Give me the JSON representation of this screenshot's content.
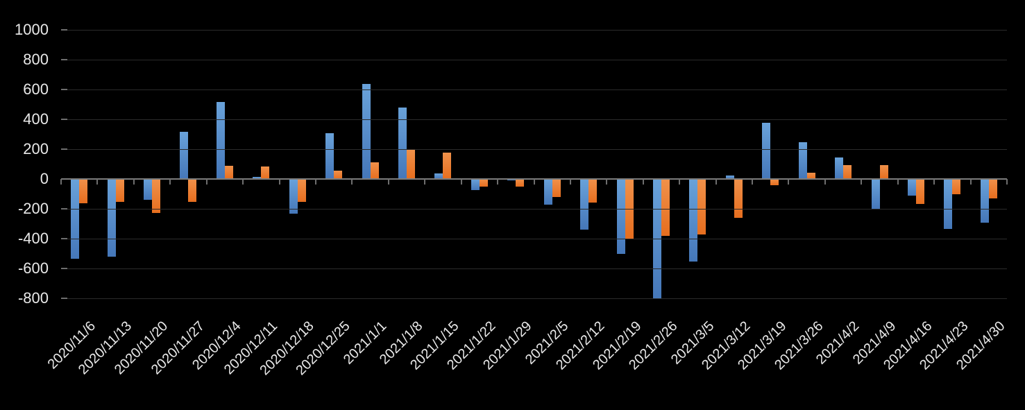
{
  "colors": {
    "background": "#000000",
    "gridline": "#2b2b2b",
    "axis_line": "#7d7d7d",
    "tick": "#6e6e6e",
    "label_text": "#e9e9e9",
    "series_blue": "#5b9bd5",
    "series_blue_gradient_top": "#69a2da",
    "series_blue_gradient_bottom": "#4577b9",
    "series_orange": "#ed7d31",
    "series_orange_gradient_top": "#f0914a",
    "series_orange_gradient_bottom": "#e66e1f"
  },
  "chart_data": {
    "type": "bar",
    "title": "",
    "xlabel": "",
    "ylabel": "",
    "grid": true,
    "legend": "none",
    "ylim": [
      -800,
      1000
    ],
    "ytick_interval": 200,
    "yticks": [
      1000,
      800,
      600,
      400,
      200,
      0,
      -200,
      -400,
      -600,
      -800
    ],
    "categories": [
      "2020/11/6",
      "2020/11/13",
      "2020/11/20",
      "2020/11/27",
      "2020/12/4",
      "2020/12/11",
      "2020/12/18",
      "2020/12/25",
      "2021/1/1",
      "2021/1/8",
      "2021/1/15",
      "2021/1/22",
      "2021/1/29",
      "2021/2/5",
      "2021/2/12",
      "2021/2/19",
      "2021/2/26",
      "2021/3/5",
      "2021/3/12",
      "2021/3/19",
      "2021/3/26",
      "2021/4/2",
      "2021/4/9",
      "2021/4/16",
      "2021/4/23",
      "2021/4/30"
    ],
    "series": [
      {
        "name": "blue",
        "color": "#5b9bd5",
        "values": [
          -535,
          -520,
          -140,
          320,
          520,
          15,
          -230,
          310,
          640,
          480,
          40,
          -75,
          -10,
          -170,
          -340,
          -500,
          -805,
          -550,
          25,
          380,
          250,
          145,
          -205,
          -110,
          -335,
          -290
        ]
      },
      {
        "name": "orange",
        "color": "#ed7d31",
        "values": [
          -160,
          -150,
          -225,
          -150,
          90,
          85,
          -150,
          55,
          115,
          200,
          180,
          -50,
          -50,
          -120,
          -155,
          -400,
          -380,
          -370,
          -260,
          -40,
          45,
          95,
          95,
          -165,
          -100,
          -130
        ]
      }
    ]
  }
}
